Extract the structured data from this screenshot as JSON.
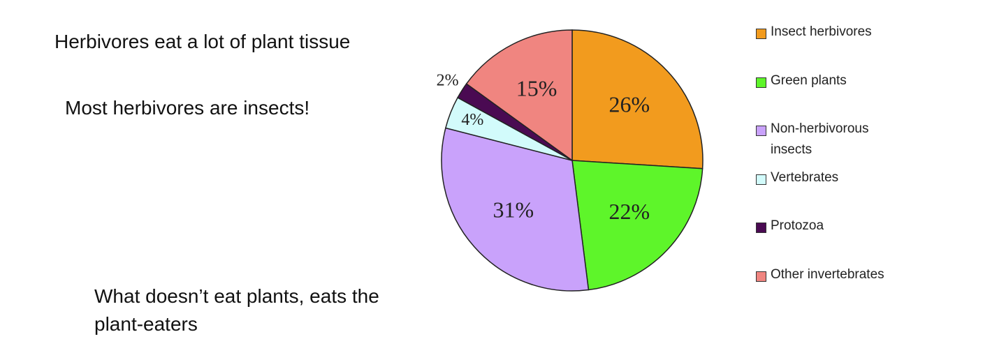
{
  "chart_data": {
    "type": "pie",
    "annotations": [
      "Herbivores eat a lot of plant tissue",
      "Most herbivores are insects!",
      "What doesn’t eat plants, eats the plant-eaters"
    ],
    "categories": [
      "Insect herbivores",
      "Green plants",
      "Non-herbivorous insects",
      "Vertebrates",
      "Protozoa",
      "Other invertebrates"
    ],
    "values": [
      26,
      22,
      31,
      4,
      2,
      15
    ],
    "value_labels": [
      "26%",
      "22%",
      "31%",
      "4%",
      "2%",
      "15%"
    ],
    "colors": [
      "#f29b1e",
      "#5ef52a",
      "#c9a2fb",
      "#d2fbfb",
      "#4a0a52",
      "#f08580"
    ]
  }
}
